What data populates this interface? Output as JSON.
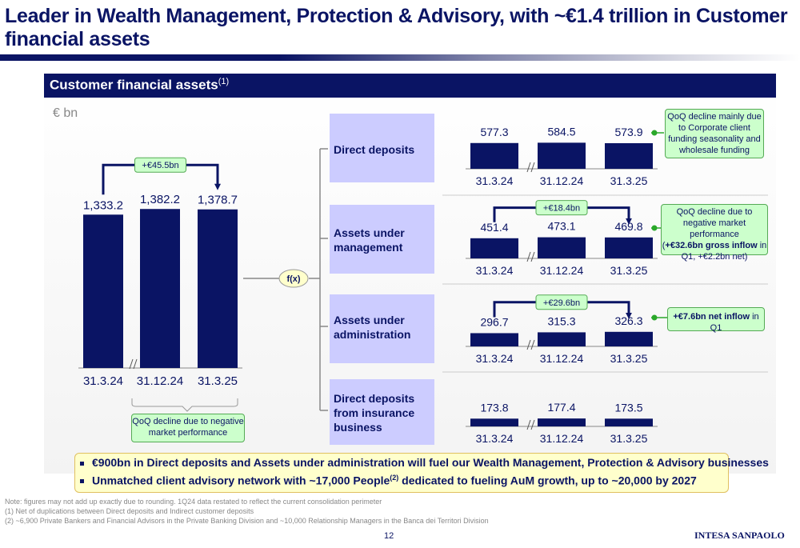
{
  "title": "Leader in Wealth Management, Protection & Advisory, with ~€1.4 trillion in Customer financial assets",
  "panel": {
    "title": "Customer financial assets",
    "title_sup": "(1)",
    "unit": "€ bn",
    "fx_label": "f(x)"
  },
  "chart_data": [
    {
      "type": "bar",
      "title": "Customer financial assets",
      "categories": [
        "31.3.24",
        "31.12.24",
        "31.3.25"
      ],
      "values": [
        1333.2,
        1382.2,
        1378.7
      ],
      "labels": [
        "1,333.2",
        "1,382.2",
        "1,378.7"
      ],
      "ylim": [
        0,
        1600
      ],
      "callout": "+€45.5bn",
      "note": "QoQ decline due to negative market performance"
    },
    {
      "type": "bar",
      "title": "Direct deposits",
      "categories": [
        "31.3.24",
        "31.12.24",
        "31.3.25"
      ],
      "values": [
        577.3,
        584.5,
        573.9
      ],
      "labels": [
        "577.3",
        "584.5",
        "573.9"
      ],
      "ylim": [
        0,
        1540
      ]
    },
    {
      "type": "bar",
      "title": "Assets under management",
      "categories": [
        "31.3.24",
        "31.12.24",
        "31.3.25"
      ],
      "values": [
        451.4,
        473.1,
        469.8
      ],
      "labels": [
        "451.4",
        "473.1",
        "469.8"
      ],
      "ylim": [
        0,
        1540
      ],
      "callout": "+€18.4bn"
    },
    {
      "type": "bar",
      "title": "Assets under administration",
      "categories": [
        "31.3.24",
        "31.12.24",
        "31.3.25"
      ],
      "values": [
        296.7,
        315.3,
        326.3
      ],
      "labels": [
        "296.7",
        "315.3",
        "326.3"
      ],
      "ylim": [
        0,
        1540
      ],
      "callout": "+€29.6bn"
    },
    {
      "type": "bar",
      "title": "Direct deposits from insurance business",
      "categories": [
        "31.3.24",
        "31.12.24",
        "31.3.25"
      ],
      "values": [
        173.8,
        177.4,
        173.5
      ],
      "labels": [
        "173.8",
        "177.4",
        "173.5"
      ],
      "ylim": [
        0,
        1540
      ]
    }
  ],
  "segments": [
    {
      "label_lines": [
        "Direct deposits"
      ]
    },
    {
      "label_lines": [
        "Assets under",
        "management"
      ]
    },
    {
      "label_lines": [
        "Assets under",
        "administration"
      ]
    },
    {
      "label_lines": [
        "Direct deposits",
        "from insurance",
        "business"
      ]
    }
  ],
  "notes": {
    "direct_deposits": "QoQ decline mainly due to Corporate client funding seasonality and wholesale funding",
    "aum_line1": "QoQ decline due to negative market performance",
    "aum_bold": "+€32.6bn gross inflow",
    "aum_rest": " in Q1, +€2.2bn net)",
    "aum_open": "(",
    "auadmin_bold": "+€7.6bn net inflow",
    "auadmin_rest": " in Q1"
  },
  "bullets": [
    "€900bn in Direct deposits and Assets under administration will fuel our Wealth Management, Protection & Advisory businesses",
    {
      "before": "Unmatched client advisory network with ~17,000 People",
      "sup": "(2)",
      "after": " dedicated to fueling AuM growth, up to ~20,000 by 2027"
    }
  ],
  "footnotes": [
    "Note: figures may not add up exactly due to rounding. 1Q24 data restated to reflect the current consolidation perimeter",
    "(1)  Net of duplications between Direct deposits and Indirect customer deposits",
    "(2)  ~6,900 Private Bankers and Financial Advisors in the Private Banking Division and ~10,000 Relationship Managers in the Banca dei Territori Division"
  ],
  "page_number": "12",
  "logo_text": "INTESA SANPAOLO",
  "colors": {
    "navy": "#0a1464",
    "segment_bg": "#ccccff",
    "note_bg": "#ccffcc",
    "highlight_bg": "#ffffcc",
    "accent_green": "#2aa82a"
  }
}
